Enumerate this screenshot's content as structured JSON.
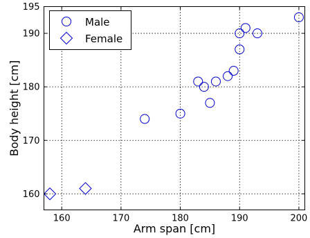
{
  "chart_data": {
    "type": "scatter",
    "xlabel": "Arm span [cm]",
    "ylabel": "Body height [cm]",
    "xlim": [
      157,
      201
    ],
    "ylim": [
      157,
      195
    ],
    "xticks": [
      "160",
      "170",
      "180",
      "190",
      "200"
    ],
    "yticks": [
      "160",
      "170",
      "180",
      "190",
      "195"
    ],
    "grid": true,
    "legend_position": "top-left",
    "marker_color": "#0000cc",
    "series": [
      {
        "name": "Male",
        "marker": "circle",
        "points": [
          {
            "x": 174,
            "y": 174
          },
          {
            "x": 180,
            "y": 175
          },
          {
            "x": 183,
            "y": 181
          },
          {
            "x": 184,
            "y": 180
          },
          {
            "x": 185,
            "y": 177
          },
          {
            "x": 186,
            "y": 181
          },
          {
            "x": 188,
            "y": 182
          },
          {
            "x": 189,
            "y": 183
          },
          {
            "x": 190,
            "y": 187
          },
          {
            "x": 190,
            "y": 190
          },
          {
            "x": 191,
            "y": 191
          },
          {
            "x": 193,
            "y": 190
          },
          {
            "x": 200,
            "y": 193
          }
        ]
      },
      {
        "name": "Female",
        "marker": "diamond",
        "points": [
          {
            "x": 158,
            "y": 160
          },
          {
            "x": 164,
            "y": 161
          }
        ]
      }
    ]
  }
}
